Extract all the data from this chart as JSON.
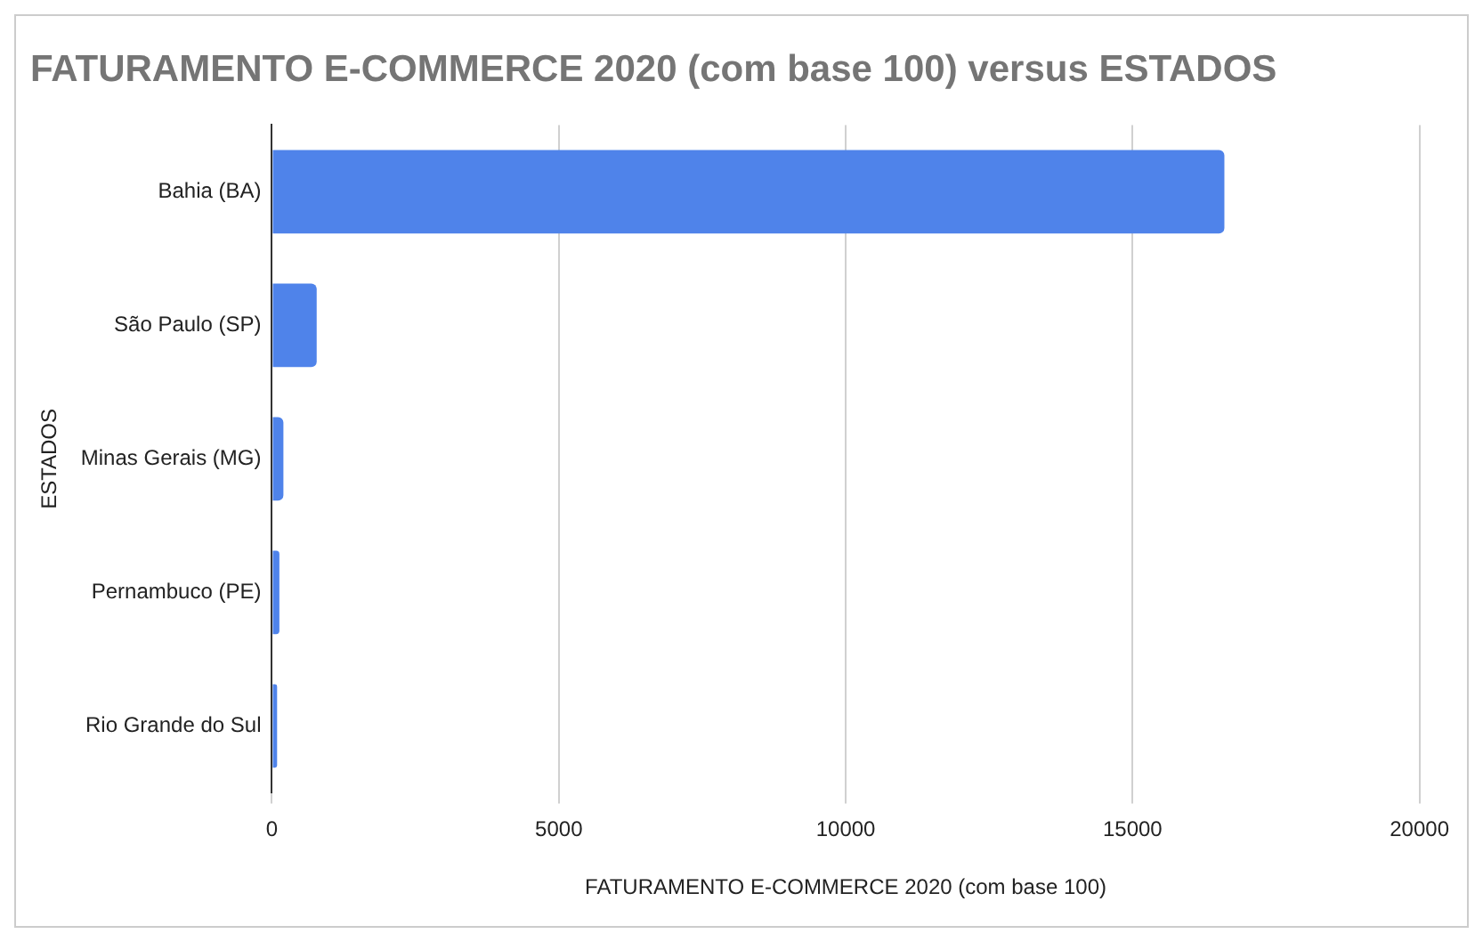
{
  "chart_data": {
    "type": "bar",
    "orientation": "horizontal",
    "title": "FATURAMENTO E-COMMERCE 2020 (com base 100) versus ESTADOS",
    "xlabel": "FATURAMENTO E-COMMERCE 2020 (com base 100)",
    "ylabel": "ESTADOS",
    "categories": [
      "Bahia (BA)",
      "São Paulo (SP)",
      "Minas Gerais (MG)",
      "Pernambuco (PE)",
      "Rio Grande do Sul"
    ],
    "values": [
      16600,
      780,
      200,
      130,
      90
    ],
    "color": "#4f83ea",
    "xlim": [
      0,
      20000
    ],
    "xticks": [
      0,
      5000,
      10000,
      15000,
      20000
    ],
    "grid": "x",
    "legend": false
  }
}
